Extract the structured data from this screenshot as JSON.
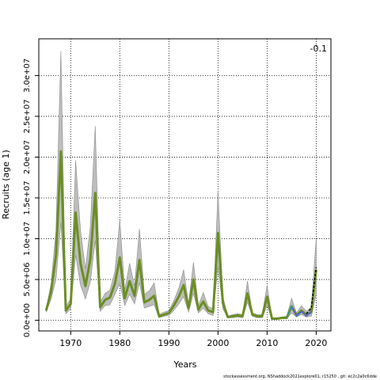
{
  "chart_data": {
    "type": "line",
    "title": "",
    "annotation": "-0.1",
    "xlabel": "Years",
    "ylabel": "Recruits (age 1)",
    "xlim": [
      1963.5,
      2023
    ],
    "ylim": [
      -1300000,
      34500000
    ],
    "x_ticks": [
      1970,
      1980,
      1990,
      2000,
      2010,
      2020
    ],
    "y_ticks": [
      0,
      5000000,
      10000000,
      15000000,
      20000000,
      25000000,
      30000000
    ],
    "y_tick_labels": [
      "0.0e+00",
      "5.0e+06",
      "1.0e+07",
      "1.5e+07",
      "2.0e+07",
      "2.5e+07",
      "3.0e+07"
    ],
    "grid": true,
    "grid_style": "dotted",
    "band_color": "#bdbdbd",
    "band_edge_color": "#8c8c8c",
    "series": [
      {
        "color": "#6b8e23",
        "x": [
          1965,
          1966,
          1967,
          1968,
          1969,
          1970,
          1971,
          1972,
          1973,
          1974,
          1975,
          1976,
          1977,
          1978,
          1979,
          1980,
          1981,
          1982,
          1983,
          1984,
          1985,
          1986,
          1987,
          1988,
          1989,
          1990,
          1991,
          1992,
          1993,
          1994,
          1995,
          1996,
          1997,
          1998,
          1999,
          2000,
          2001,
          2002,
          2003,
          2004,
          2005,
          2006,
          2007,
          2008,
          2009,
          2010,
          2011,
          2012,
          2013,
          2014,
          2015,
          2016,
          2017,
          2018,
          2019,
          2020
        ],
        "y": [
          1200000,
          3500000,
          8000000,
          20700000,
          1200000,
          2000000,
          13200000,
          7000000,
          4200000,
          7500000,
          15600000,
          1600000,
          2500000,
          2800000,
          4500000,
          7700000,
          2700000,
          4800000,
          3000000,
          7400000,
          2200000,
          2500000,
          3000000,
          500000,
          700000,
          900000,
          1800000,
          2900000,
          4300000,
          1500000,
          5000000,
          1300000,
          2300000,
          1200000,
          1000000,
          10700000,
          2100000,
          400000,
          500000,
          600000,
          500000,
          3300000,
          700000,
          500000,
          500000,
          2900000,
          200000,
          200000,
          300000,
          300000,
          1700000,
          600000,
          1200000,
          700000,
          1000000,
          6200000
        ],
        "upper": [
          1400000,
          4500000,
          11000000,
          33000000,
          1700000,
          2600000,
          19600000,
          11000000,
          6300000,
          11500000,
          23800000,
          2200000,
          3300000,
          3700000,
          6000000,
          12300000,
          3700000,
          7000000,
          4200000,
          11200000,
          3200000,
          3600000,
          4600000,
          700000,
          1000000,
          1200000,
          2400000,
          3900000,
          6200000,
          2000000,
          7100000,
          1800000,
          3400000,
          1700000,
          1400000,
          15900000,
          2900000,
          500000,
          700000,
          800000,
          700000,
          4800000,
          900000,
          700000,
          700000,
          4300000,
          300000,
          300000,
          400000,
          500000,
          2700000,
          900000,
          1800000,
          1100000,
          1600000,
          10000000
        ],
        "lower": [
          1000000,
          2600000,
          5000000,
          12000000,
          800000,
          1400000,
          8000000,
          4300000,
          2600000,
          4700000,
          9800000,
          1100000,
          1800000,
          1900000,
          3200000,
          4500000,
          1800000,
          3200000,
          2000000,
          4600000,
          1500000,
          1700000,
          1900000,
          300000,
          500000,
          600000,
          1200000,
          2000000,
          2900000,
          1000000,
          3300000,
          900000,
          1500000,
          800000,
          600000,
          6600000,
          1400000,
          300000,
          300000,
          400000,
          300000,
          2200000,
          500000,
          300000,
          300000,
          1800000,
          100000,
          100000,
          200000,
          200000,
          900000,
          400000,
          700000,
          400000,
          500000,
          3200000
        ]
      },
      {
        "color": "#3a9a8a",
        "x": [
          2014,
          2015,
          2016,
          2017,
          2018,
          2019
        ],
        "y": [
          300000,
          1800000,
          500000,
          1000000,
          600000,
          900000
        ]
      },
      {
        "color": "#5b5bd6",
        "x": [
          2015,
          2016,
          2017,
          2018,
          2019
        ],
        "y": [
          1600000,
          600000,
          1100000,
          500000,
          1100000
        ]
      },
      {
        "color": "#000000",
        "dashed": true,
        "x": [
          2018,
          2019,
          2020
        ],
        "y": [
          800000,
          1500000,
          6500000
        ]
      }
    ]
  },
  "footer": "stockassessment.org, NShaddock2021explore01, r15250 ,  git: ec2c2a0c6dde"
}
